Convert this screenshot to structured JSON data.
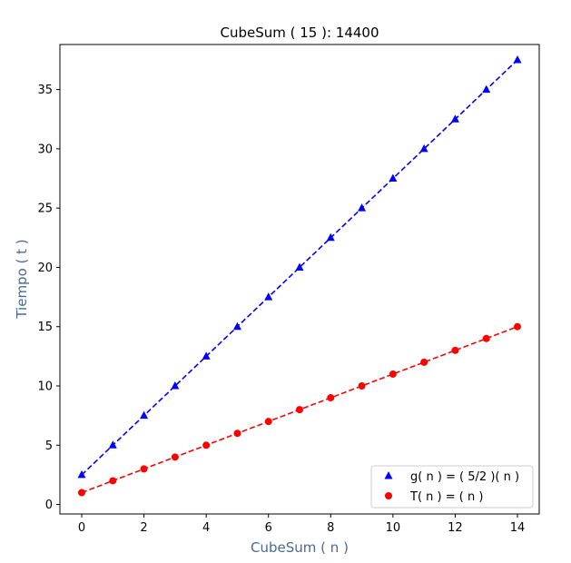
{
  "chart_data": {
    "type": "line",
    "title": "CubeSum ( 15 ): 14400",
    "xlabel": "CubeSum ( n )",
    "ylabel": "Tiempo ( t )",
    "xlim": [
      -0.7,
      14.7
    ],
    "ylim": [
      -0.8,
      38.8
    ],
    "xticks": [
      0,
      2,
      4,
      6,
      8,
      10,
      12,
      14
    ],
    "yticks": [
      0,
      5,
      10,
      15,
      20,
      25,
      30,
      35
    ],
    "grid": false,
    "legend_position": "lower-right",
    "x": [
      0,
      1,
      2,
      3,
      4,
      5,
      6,
      7,
      8,
      9,
      10,
      11,
      12,
      13,
      14
    ],
    "series": [
      {
        "name": "g( n ) = ( 5/2 )( n )",
        "marker": "triangle",
        "color": "#0000ff",
        "linestyle": "dashed",
        "values": [
          2.5,
          5,
          7.5,
          10,
          12.5,
          15,
          17.5,
          20,
          22.5,
          25,
          27.5,
          30,
          32.5,
          35,
          37.5
        ]
      },
      {
        "name": "T( n ) = ( n )",
        "marker": "circle",
        "color": "#ff0000",
        "linestyle": "dashed",
        "values": [
          1,
          2,
          3,
          4,
          5,
          6,
          7,
          8,
          9,
          10,
          11,
          12,
          13,
          14,
          15
        ]
      }
    ]
  }
}
